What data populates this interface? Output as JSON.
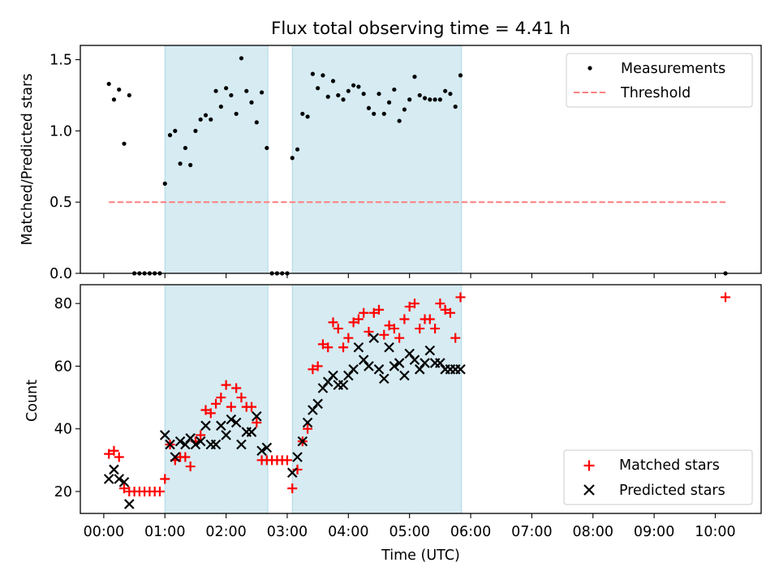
{
  "chart_data": [
    {
      "type": "scatter",
      "title": "Flux total observing time = 4.41 h",
      "xlabel": "",
      "ylabel": "Matched/Predicted stars",
      "xlim": [
        "23:37",
        "10:45"
      ],
      "ylim": [
        0,
        1.6
      ],
      "yticks": [
        0.0,
        0.5,
        1.0,
        1.5
      ],
      "ytick_labels": [
        "0.0",
        "0.5",
        "1.0",
        "1.5"
      ],
      "xticks": [
        "00:00",
        "01:00",
        "02:00",
        "03:00",
        "04:00",
        "05:00",
        "06:00",
        "07:00",
        "08:00",
        "09:00",
        "10:00"
      ],
      "show_xtick_labels": false,
      "legend_position": "top-right",
      "grid": false,
      "shaded_intervals": [
        [
          "01:00",
          "02:41"
        ],
        [
          "03:05",
          "05:51"
        ]
      ],
      "series": [
        {
          "name": "Measurements",
          "marker": "dot",
          "color": "#000000",
          "x": [
            "00:05",
            "00:10",
            "00:15",
            "00:20",
            "00:25",
            "00:30",
            "00:35",
            "00:40",
            "00:45",
            "00:50",
            "00:55",
            "01:00",
            "01:05",
            "01:10",
            "01:15",
            "01:20",
            "01:25",
            "01:30",
            "01:35",
            "01:40",
            "01:45",
            "01:50",
            "01:55",
            "02:00",
            "02:05",
            "02:10",
            "02:15",
            "02:20",
            "02:25",
            "02:30",
            "02:35",
            "02:40",
            "02:45",
            "02:50",
            "02:55",
            "03:00",
            "03:05",
            "03:10",
            "03:15",
            "03:20",
            "03:25",
            "03:30",
            "03:35",
            "03:40",
            "03:45",
            "03:50",
            "03:55",
            "04:00",
            "04:05",
            "04:10",
            "04:15",
            "04:20",
            "04:25",
            "04:30",
            "04:35",
            "04:40",
            "04:45",
            "04:50",
            "04:55",
            "05:00",
            "05:05",
            "05:10",
            "05:15",
            "05:20",
            "05:25",
            "05:30",
            "05:35",
            "05:40",
            "05:45",
            "05:50",
            "10:10"
          ],
          "y": [
            1.33,
            1.22,
            1.29,
            0.91,
            1.25,
            0.0,
            0.0,
            0.0,
            0.0,
            0.0,
            0.0,
            0.63,
            0.97,
            1.0,
            0.77,
            0.88,
            0.76,
            1.0,
            1.08,
            1.11,
            1.08,
            1.28,
            1.17,
            1.3,
            1.25,
            1.12,
            1.51,
            1.28,
            1.2,
            1.06,
            1.27,
            0.88,
            0.0,
            0.0,
            0.0,
            0.0,
            0.81,
            0.87,
            1.12,
            1.1,
            1.4,
            1.3,
            1.39,
            1.24,
            1.35,
            1.25,
            1.22,
            1.28,
            1.32,
            1.31,
            1.26,
            1.16,
            1.12,
            1.26,
            1.12,
            1.2,
            1.29,
            1.07,
            1.15,
            1.22,
            1.38,
            1.25,
            1.23,
            1.22,
            1.22,
            1.22,
            1.28,
            1.26,
            1.17,
            1.39,
            0.0
          ]
        },
        {
          "name": "Threshold",
          "line_style": "dashed",
          "color": "#ff7f7f",
          "x": [
            "00:05",
            "10:10"
          ],
          "y": [
            0.5,
            0.5
          ]
        }
      ]
    },
    {
      "type": "scatter",
      "title": "",
      "xlabel": "Time (UTC)",
      "ylabel": "Count",
      "xlim": [
        "23:37",
        "10:45"
      ],
      "ylim": [
        13,
        86
      ],
      "yticks": [
        20,
        40,
        60,
        80
      ],
      "ytick_labels": [
        "20",
        "40",
        "60",
        "80"
      ],
      "xticks": [
        "00:00",
        "01:00",
        "02:00",
        "03:00",
        "04:00",
        "05:00",
        "06:00",
        "07:00",
        "08:00",
        "09:00",
        "10:00"
      ],
      "show_xtick_labels": true,
      "legend_position": "bottom-right",
      "grid": false,
      "shaded_intervals": [
        [
          "01:00",
          "02:41"
        ],
        [
          "03:05",
          "05:51"
        ]
      ],
      "series": [
        {
          "name": "Matched stars",
          "marker": "plus",
          "color": "#ff0000",
          "x": [
            "00:05",
            "00:10",
            "00:15",
            "00:20",
            "00:25",
            "00:30",
            "00:35",
            "00:40",
            "00:45",
            "00:50",
            "00:55",
            "01:00",
            "01:05",
            "01:10",
            "01:15",
            "01:20",
            "01:25",
            "01:30",
            "01:35",
            "01:40",
            "01:45",
            "01:50",
            "01:55",
            "02:00",
            "02:05",
            "02:10",
            "02:15",
            "02:20",
            "02:25",
            "02:30",
            "02:35",
            "02:40",
            "02:45",
            "02:50",
            "02:55",
            "03:00",
            "03:05",
            "03:10",
            "03:15",
            "03:20",
            "03:25",
            "03:30",
            "03:35",
            "03:40",
            "03:45",
            "03:50",
            "03:55",
            "04:00",
            "04:05",
            "04:10",
            "04:15",
            "04:20",
            "04:25",
            "04:30",
            "04:35",
            "04:40",
            "04:45",
            "04:50",
            "04:55",
            "05:00",
            "05:05",
            "05:10",
            "05:15",
            "05:20",
            "05:25",
            "05:30",
            "05:35",
            "05:40",
            "05:45",
            "05:50",
            "10:10"
          ],
          "y": [
            32,
            33,
            31,
            21,
            20,
            20,
            20,
            20,
            20,
            20,
            20,
            24,
            35,
            30,
            31,
            31,
            28,
            36,
            38,
            46,
            45,
            48,
            50,
            54,
            47,
            53,
            50,
            47,
            47,
            42,
            30,
            30,
            30,
            30,
            30,
            30,
            21,
            27,
            36,
            40,
            59,
            60,
            67,
            66,
            74,
            72,
            66,
            69,
            74,
            75,
            77,
            71,
            77,
            78,
            70,
            73,
            72,
            69,
            75,
            79,
            80,
            72,
            75,
            75,
            72,
            80,
            78,
            77,
            69,
            82,
            82
          ]
        },
        {
          "name": "Predicted stars",
          "marker": "x",
          "color": "#000000",
          "x": [
            "00:05",
            "00:10",
            "00:15",
            "00:20",
            "00:25",
            "01:00",
            "01:05",
            "01:10",
            "01:15",
            "01:20",
            "01:25",
            "01:30",
            "01:35",
            "01:40",
            "01:45",
            "01:50",
            "01:55",
            "02:00",
            "02:05",
            "02:10",
            "02:15",
            "02:20",
            "02:25",
            "02:30",
            "02:35",
            "02:40",
            "03:05",
            "03:10",
            "03:15",
            "03:20",
            "03:25",
            "03:30",
            "03:35",
            "03:40",
            "03:45",
            "03:50",
            "03:55",
            "04:00",
            "04:05",
            "04:10",
            "04:15",
            "04:20",
            "04:25",
            "04:30",
            "04:35",
            "04:40",
            "04:45",
            "04:50",
            "04:55",
            "05:00",
            "05:05",
            "05:10",
            "05:15",
            "05:20",
            "05:25",
            "05:30",
            "05:35",
            "05:40",
            "05:45",
            "05:50"
          ],
          "y": [
            24,
            27,
            24,
            23,
            16,
            38,
            35,
            31,
            36,
            35,
            37,
            35,
            36,
            41,
            35,
            35,
            41,
            38,
            43,
            42,
            35,
            39,
            39,
            44,
            33,
            34,
            26,
            31,
            36,
            42,
            46,
            48,
            53,
            55,
            57,
            54,
            54,
            57,
            59,
            66,
            62,
            60,
            69,
            59,
            56,
            66,
            60,
            61,
            57,
            64,
            62,
            59,
            61,
            65,
            61,
            61,
            59,
            59,
            59,
            59
          ]
        }
      ]
    }
  ]
}
